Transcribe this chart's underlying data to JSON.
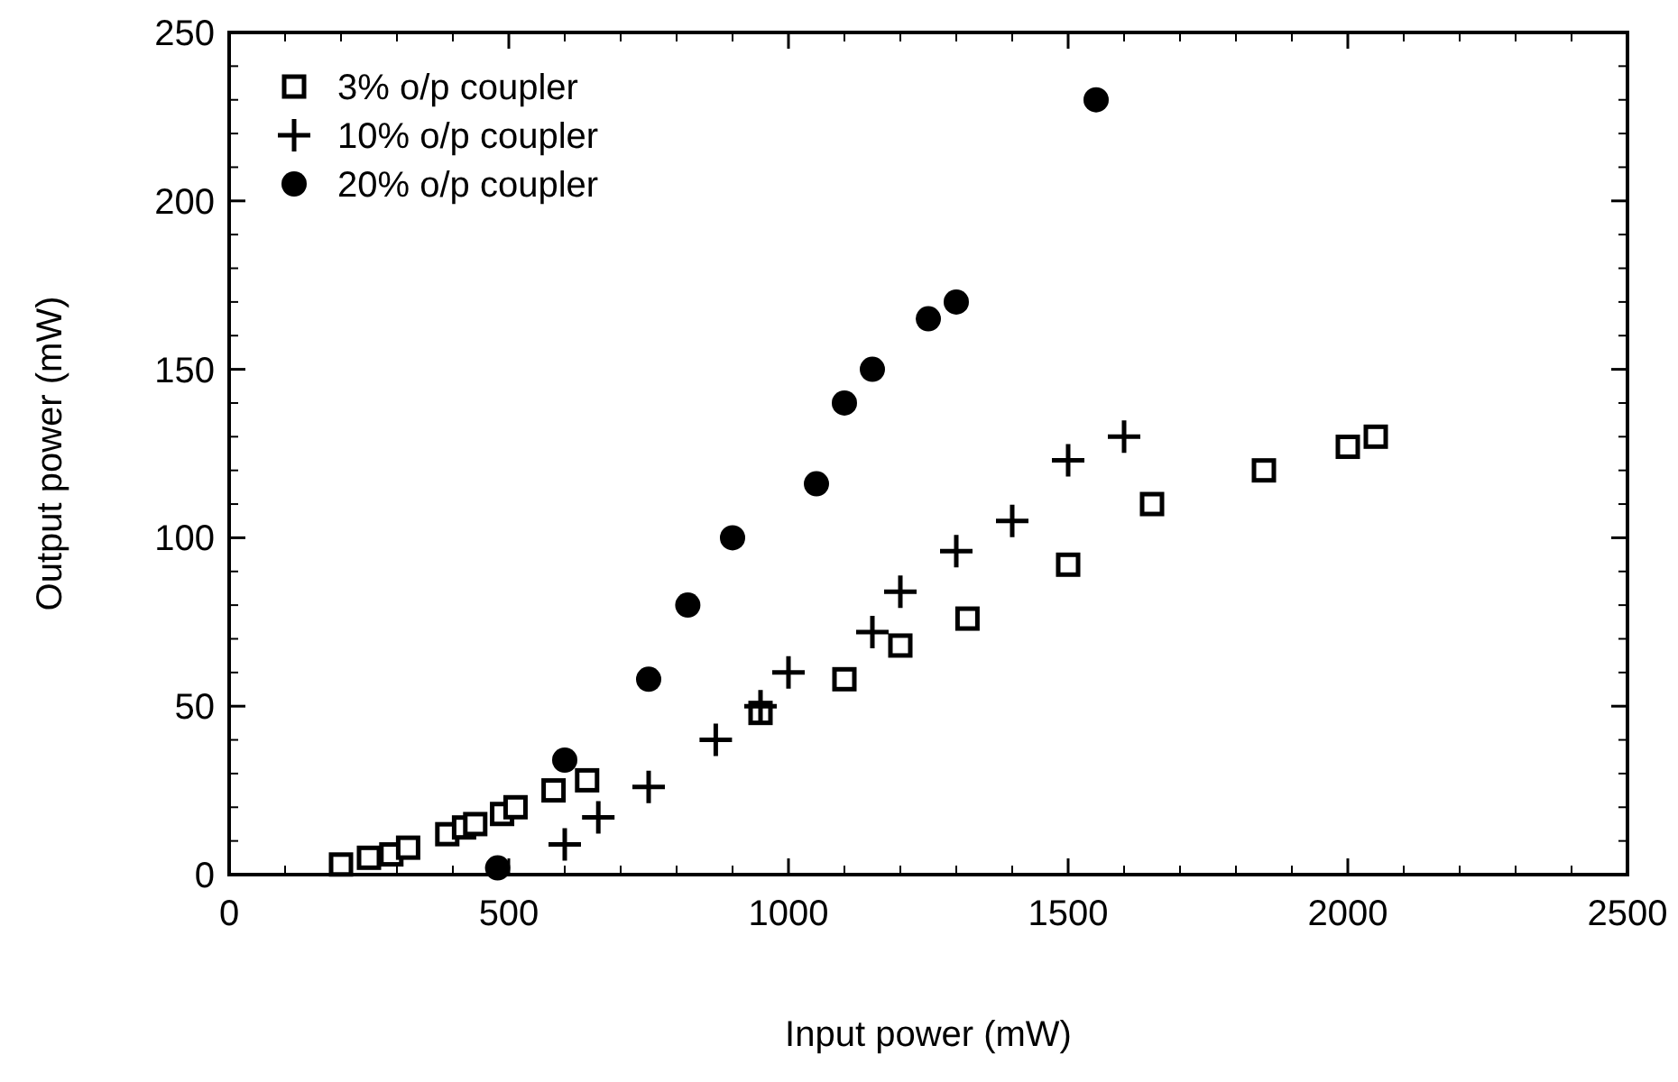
{
  "chart_data": {
    "type": "scatter",
    "xlabel": "Input power (mW)",
    "ylabel": "Output power (mW)",
    "xlim": [
      0,
      2500
    ],
    "ylim": [
      0,
      250
    ],
    "xticks": [
      0,
      500,
      1000,
      1500,
      2000,
      2500
    ],
    "yticks": [
      0,
      50,
      100,
      150,
      200,
      250
    ],
    "grid": false,
    "legend": "top left",
    "series": [
      {
        "name": "3% o/p coupler",
        "color": "#000000",
        "marker": "square",
        "x": [
          200,
          250,
          290,
          320,
          390,
          420,
          440,
          488,
          512,
          580,
          640,
          950,
          1100,
          1200,
          1320,
          1500,
          1650,
          1850,
          2000,
          2050
        ],
        "values": [
          3,
          5,
          6,
          8,
          12,
          14,
          15,
          18,
          20,
          25,
          28,
          48,
          58,
          68,
          76,
          92,
          110,
          120,
          127,
          130
        ]
      },
      {
        "name": "10% o/p coupler",
        "color": "#000000",
        "marker": "cross",
        "x": [
          600,
          660,
          750,
          870,
          950,
          1000,
          1150,
          1200,
          1300,
          1400,
          1500,
          1600
        ],
        "values": [
          9,
          17,
          26,
          40,
          50,
          60,
          72,
          84,
          96,
          105,
          123,
          130
        ]
      },
      {
        "name": "20% o/p coupler",
        "color": "#000000",
        "marker": "circle",
        "x": [
          480,
          600,
          750,
          820,
          900,
          1050,
          1100,
          1150,
          1250,
          1300,
          1550
        ],
        "values": [
          2,
          34,
          58,
          80,
          100,
          116,
          140,
          150,
          165,
          170,
          230
        ]
      }
    ]
  }
}
